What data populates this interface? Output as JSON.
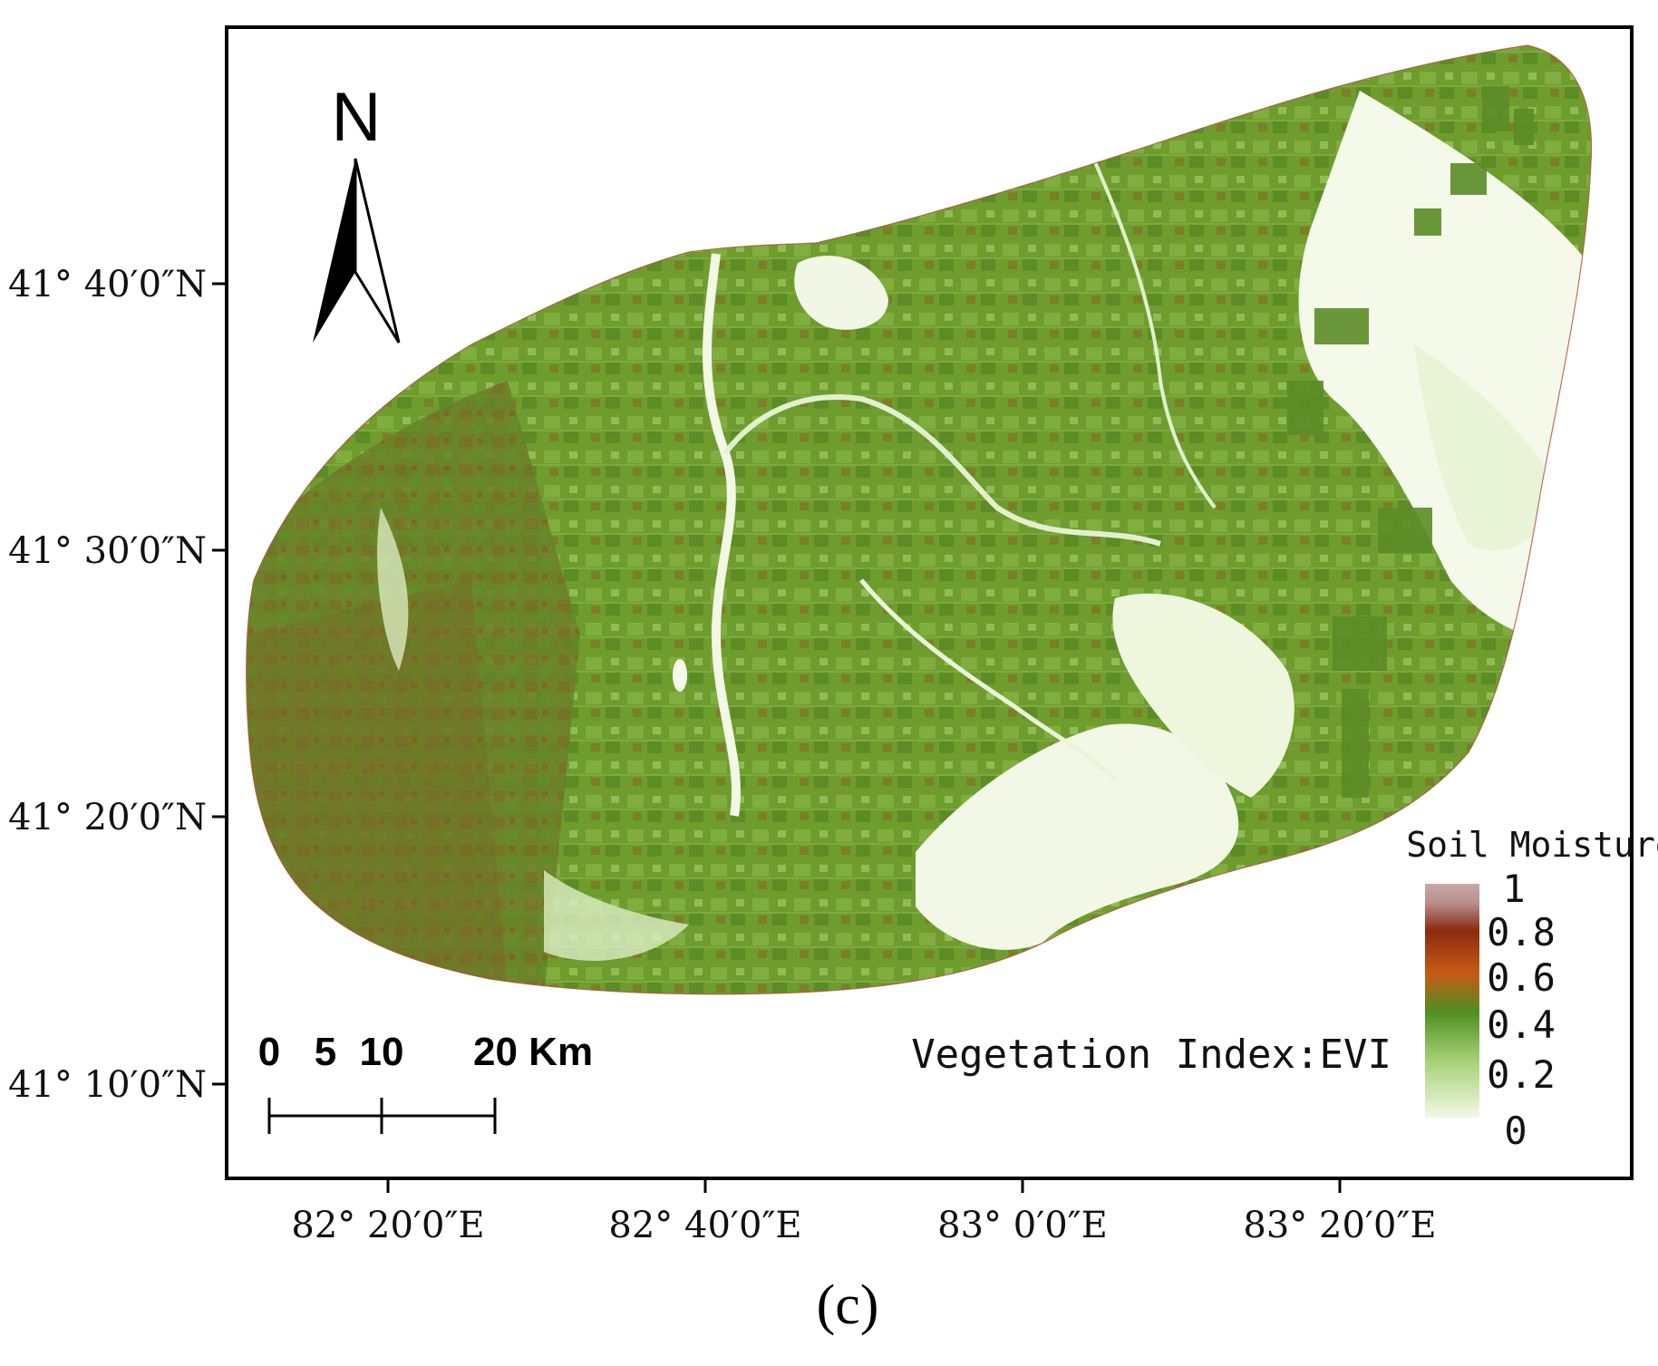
{
  "map": {
    "north_label": "N",
    "lat_ticks": [
      "41° 40′0″N",
      "41° 30′0″N",
      "41° 20′0″N",
      "41° 10′0″N"
    ],
    "lon_ticks": [
      "82° 20′0″E",
      "82° 40′0″E",
      "83° 0′0″E",
      "83° 20′0″E"
    ],
    "scale_bar": {
      "labels": [
        "0",
        "5",
        "10",
        "20 Km"
      ]
    },
    "vegetation_label": "Vegetation Index:EVI",
    "legend": {
      "title": "Soil Moisture",
      "ticks": [
        "1",
        "0.8",
        "0.6",
        "0.4",
        "0.2",
        "0"
      ],
      "colors": [
        "#b9908e",
        "#8a2a10",
        "#c85a14",
        "#4f8f24",
        "#a4cf72",
        "#f3f8e6"
      ]
    },
    "caption": "(c)",
    "colors": {
      "frame": "#000000",
      "vegetation_dark": "#5e8a26",
      "vegetation_mid": "#7aa63a",
      "vegetation_light": "#c7e0a0",
      "bare_land": "#f4f9ea",
      "moist_soil": "#9a5a20"
    }
  }
}
